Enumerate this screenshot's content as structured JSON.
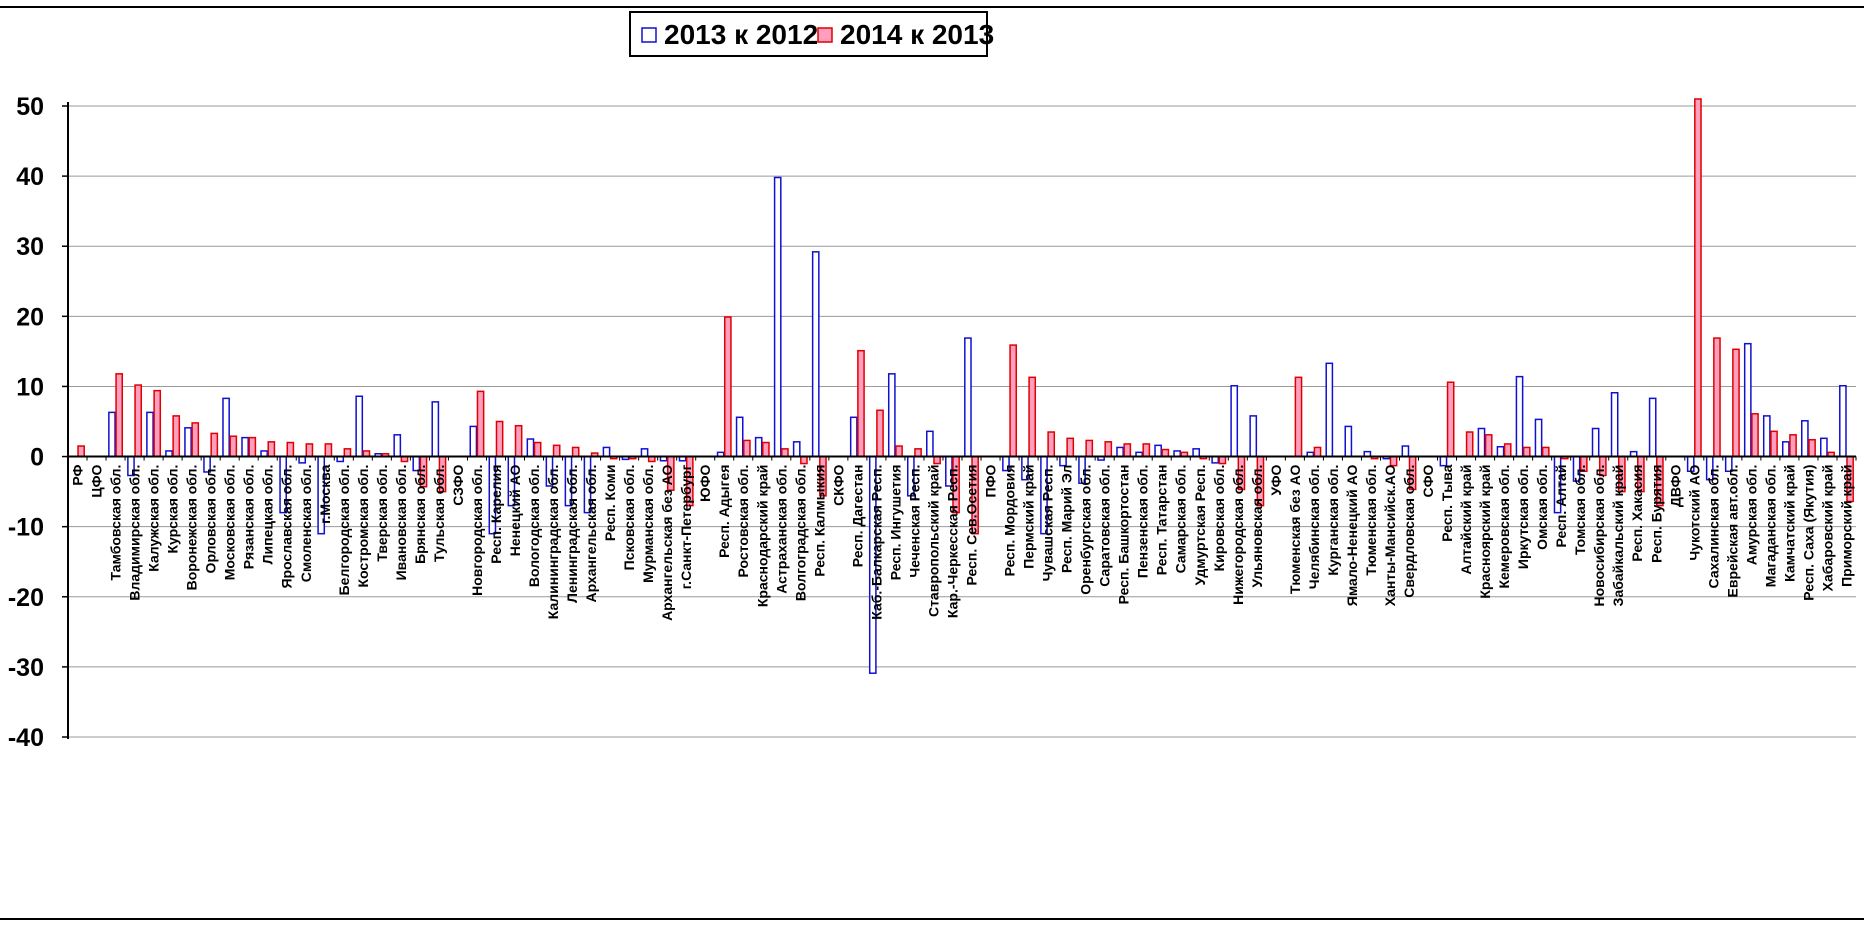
{
  "chart_data": {
    "type": "bar",
    "title": "",
    "xlabel": "",
    "ylabel": "",
    "ylim": [
      -40,
      50
    ],
    "yticks": [
      -40,
      -30,
      -20,
      -10,
      0,
      10,
      20,
      30,
      40,
      50
    ],
    "grid": "horizontal",
    "legend_position": "top-center",
    "categories": [
      "РФ",
      "ЦФО",
      "Тамбовская обл.",
      "Владимирская обл.",
      "Калужская обл.",
      "Курская обл.",
      "Воронежская обл.",
      "Орловская обл.",
      "Московская обл.",
      "Рязанская обл.",
      "Липецкая обл.",
      "Ярославская обл.",
      "Смоленская обл.",
      "г.Москва",
      "Белгородская обл.",
      "Костромская обл.",
      "Тверская обл.",
      "Ивановская обл.",
      "Брянская обл.",
      "Тульская обл.",
      "СЗФО",
      "Новгородская обл.",
      "Респ. Карелия",
      "Ненецкий АО",
      "Вологодская обл.",
      "Калининградская обл.",
      "Ленинградская обл.",
      "Архангельская обл.",
      "Респ. Коми",
      "Псковская обл.",
      "Мурманская обл.",
      "Архангельская без АО",
      "г.Санкт-Петербург",
      "ЮФО",
      "Респ. Адыгея",
      "Ростовская обл.",
      "Краснодарский край",
      "Астраханская обл.",
      "Волгоградская обл.",
      "Респ. Калмыкия",
      "СКФО",
      "Респ. Дагестан",
      "Каб.-Балкарская Респ.",
      "Респ. Ингушетия",
      "Чеченская Респ.",
      "Ставропольский край",
      "Кар.-Черкесская Респ.",
      "Респ. Сев.Осетия",
      "ПФО",
      "Респ. Мордовия",
      "Пермский край",
      "Чувашская Респ.",
      "Респ. Марий Эл",
      "Оренбургская обл.",
      "Саратовская обл.",
      "Респ. Башкортостан",
      "Пензенская обл.",
      "Респ. Татарстан",
      "Самарская обл.",
      "Удмуртская Респ.",
      "Кировская обл.",
      "Нижегородская обл.",
      "Ульяновская обл.",
      "УФО",
      "Тюменская без АО",
      "Челябинская обл.",
      "Курганская обл.",
      "Ямало-Ненецкий АО",
      "Тюменская обл.",
      "Ханты-Мансийск.АО",
      "Свердловская обл.",
      "СФО",
      "Респ. Тыва",
      "Алтайский край",
      "Красноярский край",
      "Кемеровская обл.",
      "Иркутская обл.",
      "Омская обл.",
      "Респ. Алтай",
      "Томская обл.",
      "Новосибирская обл.",
      "Забайкальский край",
      "Респ. Хакасия",
      "Респ. Бурятия",
      "ДВФО",
      "Чукотский АО",
      "Сахалинская обл.",
      "Еврейская авт.обл.",
      "Амурская обл.",
      "Магаданская обл.",
      "Камчатский край",
      "Респ. Саха (Якутия)",
      "Хабаровский край",
      "Приморский край"
    ],
    "series": [
      {
        "name": "2013 к 2012",
        "values": [
          0,
          0,
          6.3,
          -2.7,
          6.3,
          0.8,
          4.1,
          -2.2,
          8.3,
          2.7,
          0.8,
          -8.0,
          -0.9,
          -11.0,
          -0.7,
          8.6,
          0.4,
          3.1,
          -2.0,
          7.8,
          0,
          4.3,
          -11.0,
          -7.0,
          2.5,
          -4.2,
          -7.0,
          -8.0,
          1.3,
          -0.4,
          1.1,
          -0.6,
          -0.6,
          0,
          0.6,
          5.6,
          2.7,
          39.8,
          2.1,
          29.2,
          0,
          5.6,
          -30.9,
          11.8,
          -5.6,
          3.6,
          -4.2,
          16.9,
          0,
          -2.0,
          -3.3,
          -11.0,
          -1.3,
          -3.8,
          -0.5,
          1.3,
          0.6,
          1.6,
          0.8,
          1.1,
          -0.9,
          10.1,
          5.8,
          0,
          0,
          0.6,
          13.3,
          4.3,
          0.7,
          -0.3,
          1.5,
          0,
          -1.3,
          0,
          4.0,
          1.4,
          11.4,
          5.3,
          -8.0,
          -3.5,
          4.0,
          9.1,
          0.7,
          8.3,
          0,
          -2.1,
          -3.3,
          -2.1,
          16.1,
          5.8,
          2.1,
          5.1,
          2.6,
          10.1
        ]
      },
      {
        "name": "2014 к 2013",
        "values": [
          1.5,
          0,
          11.8,
          10.2,
          9.4,
          5.8,
          4.8,
          3.3,
          2.9,
          2.7,
          2.1,
          2.0,
          1.8,
          1.8,
          1.1,
          0.8,
          0.4,
          -0.7,
          -4.3,
          -5.0,
          0,
          9.3,
          5.0,
          4.4,
          2.0,
          1.6,
          1.3,
          0.5,
          -0.3,
          -0.3,
          -0.7,
          -4.8,
          -7.0,
          0,
          19.9,
          2.3,
          2.0,
          1.1,
          -1.0,
          -5.6,
          0,
          15.1,
          6.6,
          1.5,
          1.1,
          -1.0,
          -8.0,
          -11.0,
          0,
          15.9,
          11.3,
          3.5,
          2.6,
          2.3,
          2.1,
          1.8,
          1.8,
          1.0,
          0.6,
          -0.3,
          -1.0,
          -4.7,
          -7.0,
          0,
          11.3,
          1.3,
          0,
          0,
          -0.3,
          -1.3,
          -4.7,
          0,
          10.6,
          3.5,
          3.1,
          1.8,
          1.3,
          1.3,
          -0.3,
          -2.1,
          -2.7,
          -5.0,
          -5.0,
          -7.0,
          0,
          51.0,
          16.9,
          15.3,
          6.1,
          3.6,
          3.1,
          2.4,
          0.6,
          -6.4
        ]
      }
    ]
  }
}
